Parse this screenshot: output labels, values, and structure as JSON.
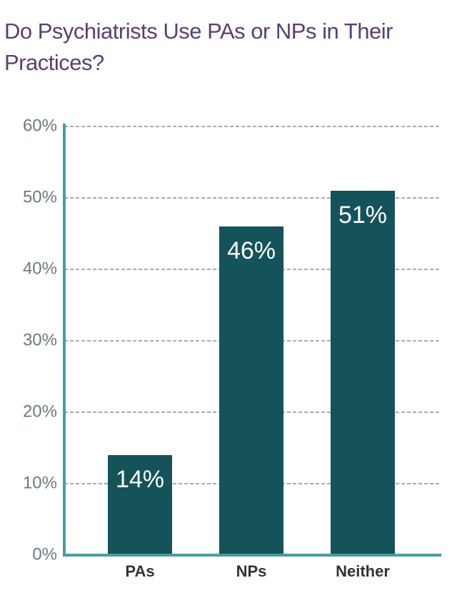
{
  "chart_data": {
    "type": "bar",
    "title": "Do Psychiatrists Use PAs or NPs in Their Practices?",
    "categories": [
      "PAs",
      "NPs",
      "Neither"
    ],
    "values": [
      14,
      46,
      51
    ],
    "value_labels": [
      "14%",
      "46%",
      "51%"
    ],
    "color": "#15535a",
    "ylim": [
      0,
      60
    ],
    "yticks": [
      {
        "value": 0,
        "label": "0%"
      },
      {
        "value": 10,
        "label": "10%"
      },
      {
        "value": 20,
        "label": "20%"
      },
      {
        "value": 30,
        "label": "30%"
      },
      {
        "value": 40,
        "label": "40%"
      },
      {
        "value": 50,
        "label": "50%"
      },
      {
        "value": 60,
        "label": "60%"
      }
    ],
    "grid": true
  }
}
